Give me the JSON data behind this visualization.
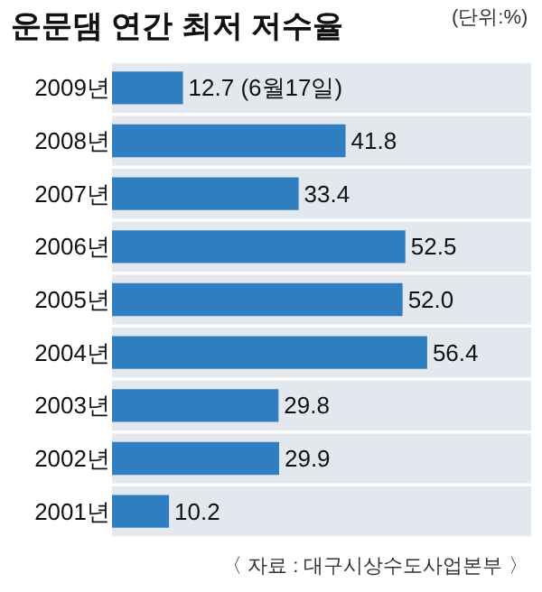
{
  "chart_data": {
    "type": "bar",
    "orientation": "horizontal",
    "title": "운문댐 연간 최저 저수율",
    "subtitle": "(단위:%)",
    "categories": [
      "2009년",
      "2008년",
      "2007년",
      "2006년",
      "2005년",
      "2004년",
      "2003년",
      "2002년",
      "2001년"
    ],
    "values": [
      12.7,
      41.8,
      33.4,
      52.5,
      52.0,
      56.4,
      29.8,
      29.9,
      10.2
    ],
    "value_labels": [
      "12.7 (6월17일)",
      "41.8",
      "33.4",
      "52.5",
      "52.0",
      "56.4",
      "29.8",
      "29.9",
      "10.2"
    ],
    "color": "#2f7fc0",
    "grid": false,
    "legend": false,
    "annotations": [
      "〈 자료 : 대구시상수도사업본부 〉"
    ]
  }
}
